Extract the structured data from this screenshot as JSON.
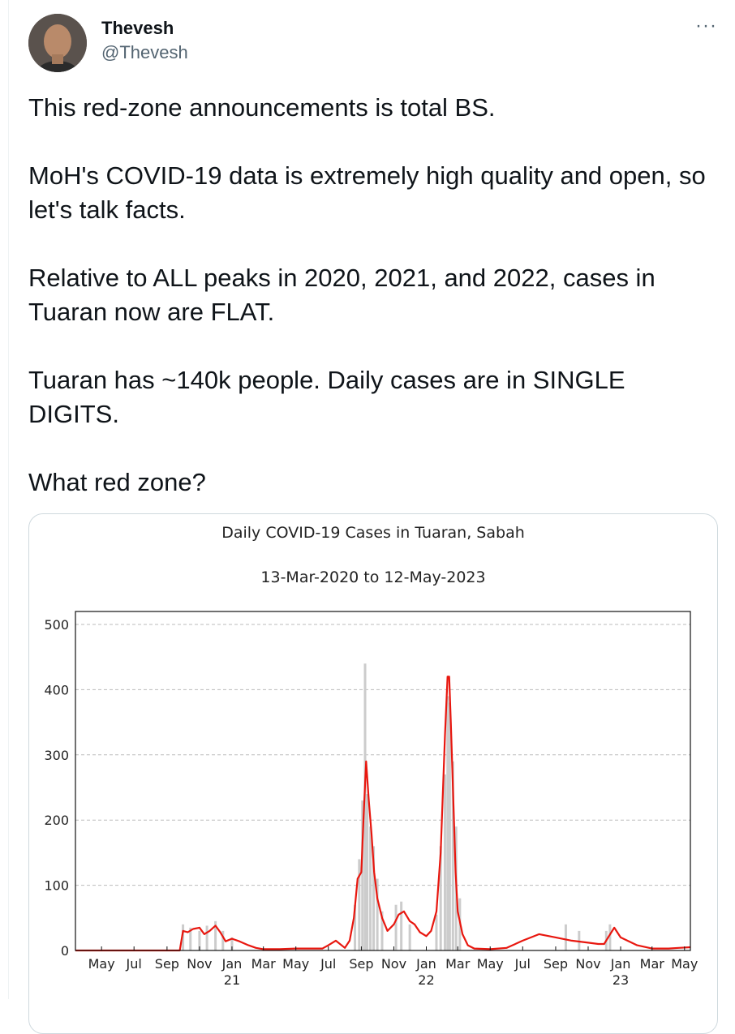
{
  "author": {
    "display_name": "Thevesh",
    "handle": "@Thevesh",
    "avatar_icon": "user-avatar-photo",
    "more_label": "···"
  },
  "tweet": {
    "text": "This red-zone announcements is total BS.\n\nMoH's COVID-19 data is extremely high quality and open, so let's talk facts.\n\nRelative to ALL peaks in 2020, 2021, and 2022, cases in Tuaran now are FLAT.\n\nTuaran has ~140k people. Daily cases are in SINGLE DIGITS.\n\nWhat red zone?"
  },
  "chart_data": {
    "type": "line",
    "title": "Daily COVID-19 Cases in Tuaran, Sabah",
    "subtitle": "13-Mar-2020 to 12-May-2023",
    "xlabel": "",
    "ylabel": "",
    "ylim": [
      0,
      500
    ],
    "y_ticks": [
      0,
      100,
      200,
      300,
      400,
      500
    ],
    "x_range": [
      "2020-03-13",
      "2023-05-12"
    ],
    "x_tick_labels": [
      {
        "label": "May",
        "sub": ""
      },
      {
        "label": "Jul",
        "sub": ""
      },
      {
        "label": "Sep",
        "sub": ""
      },
      {
        "label": "Nov",
        "sub": ""
      },
      {
        "label": "Jan",
        "sub": "21"
      },
      {
        "label": "Mar",
        "sub": ""
      },
      {
        "label": "May",
        "sub": ""
      },
      {
        "label": "Jul",
        "sub": ""
      },
      {
        "label": "Sep",
        "sub": ""
      },
      {
        "label": "Nov",
        "sub": ""
      },
      {
        "label": "Jan",
        "sub": "22"
      },
      {
        "label": "Mar",
        "sub": ""
      },
      {
        "label": "May",
        "sub": ""
      },
      {
        "label": "Jul",
        "sub": ""
      },
      {
        "label": "Sep",
        "sub": ""
      },
      {
        "label": "Nov",
        "sub": ""
      },
      {
        "label": "Jan",
        "sub": "23"
      },
      {
        "label": "Mar",
        "sub": ""
      },
      {
        "label": "May",
        "sub": ""
      }
    ],
    "grid": true,
    "colors": {
      "line": "#e8170f",
      "bars": "#cccccc"
    },
    "series": [
      {
        "type": "line",
        "x": [
          "2020-03-13",
          "2020-06-01",
          "2020-09-01",
          "2020-09-25",
          "2020-10-01",
          "2020-10-10",
          "2020-10-20",
          "2020-11-01",
          "2020-11-10",
          "2020-11-20",
          "2020-12-01",
          "2020-12-10",
          "2020-12-20",
          "2021-01-01",
          "2021-01-15",
          "2021-02-01",
          "2021-02-15",
          "2021-03-01",
          "2021-04-01",
          "2021-05-01",
          "2021-06-01",
          "2021-06-20",
          "2021-07-01",
          "2021-07-15",
          "2021-08-01",
          "2021-08-10",
          "2021-08-18",
          "2021-08-25",
          "2021-09-01",
          "2021-09-05",
          "2021-09-10",
          "2021-09-15",
          "2021-09-20",
          "2021-09-25",
          "2021-10-01",
          "2021-10-10",
          "2021-10-20",
          "2021-11-01",
          "2021-11-10",
          "2021-11-20",
          "2021-12-01",
          "2021-12-10",
          "2021-12-20",
          "2022-01-01",
          "2022-01-10",
          "2022-01-20",
          "2022-01-28",
          "2022-02-05",
          "2022-02-10",
          "2022-02-13",
          "2022-02-16",
          "2022-02-20",
          "2022-02-25",
          "2022-03-01",
          "2022-03-10",
          "2022-03-20",
          "2022-04-01",
          "2022-05-01",
          "2022-06-01",
          "2022-07-01",
          "2022-08-01",
          "2022-09-01",
          "2022-10-01",
          "2022-11-01",
          "2022-11-20",
          "2022-12-01",
          "2022-12-10",
          "2022-12-20",
          "2023-01-01",
          "2023-02-01",
          "2023-03-01",
          "2023-04-01",
          "2023-04-20",
          "2023-05-12"
        ],
        "y": [
          0,
          0,
          0,
          0,
          30,
          28,
          33,
          35,
          25,
          30,
          38,
          28,
          14,
          18,
          14,
          8,
          4,
          2,
          2,
          3,
          3,
          3,
          8,
          15,
          4,
          15,
          50,
          110,
          120,
          200,
          290,
          230,
          180,
          120,
          80,
          50,
          30,
          40,
          55,
          60,
          45,
          40,
          28,
          22,
          30,
          60,
          150,
          330,
          420,
          420,
          350,
          250,
          120,
          60,
          25,
          8,
          3,
          2,
          4,
          15,
          25,
          20,
          15,
          12,
          10,
          10,
          22,
          35,
          20,
          8,
          3,
          3,
          4,
          5
        ]
      },
      {
        "type": "bar",
        "x": [
          "2020-10-01",
          "2020-10-15",
          "2020-11-01",
          "2020-11-15",
          "2020-12-01",
          "2020-12-15",
          "2021-01-01",
          "2021-08-20",
          "2021-08-28",
          "2021-09-03",
          "2021-09-08",
          "2021-09-12",
          "2021-09-18",
          "2021-09-24",
          "2021-10-01",
          "2021-10-10",
          "2021-11-05",
          "2021-11-15",
          "2021-12-01",
          "2022-01-20",
          "2022-01-28",
          "2022-02-05",
          "2022-02-10",
          "2022-02-14",
          "2022-02-20",
          "2022-02-26",
          "2022-03-05",
          "2022-09-20",
          "2022-10-15",
          "2022-12-05",
          "2022-12-12"
        ],
        "y": [
          40,
          35,
          30,
          38,
          45,
          30,
          20,
          70,
          140,
          230,
          440,
          240,
          190,
          160,
          110,
          60,
          70,
          75,
          40,
          55,
          160,
          270,
          390,
          380,
          290,
          190,
          80,
          40,
          30,
          30,
          40
        ]
      }
    ]
  }
}
